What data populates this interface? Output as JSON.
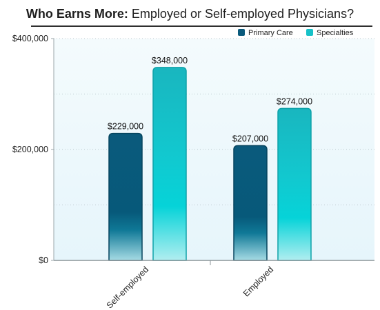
{
  "title_bold": "Who Earns More:",
  "title_rest": " Employed or Self-employed Physicians?",
  "colors": {
    "primary_care": "#0a5a7c",
    "specialties": "#17c1c8",
    "plot_bg": "#eef8fc",
    "grid": "#b9c7cc"
  },
  "chart_data": {
    "type": "bar",
    "title": "Who Earns More: Employed or Self-employed Physicians?",
    "xlabel": "",
    "ylabel": "",
    "categories": [
      "Self-employed",
      "Employed"
    ],
    "series": [
      {
        "name": "Primary Care",
        "values": [
          229000,
          207000
        ],
        "labels": [
          "$229,000",
          "$207,000"
        ]
      },
      {
        "name": "Specialties",
        "values": [
          348000,
          274000
        ],
        "labels": [
          "$348,000",
          "$274,000"
        ]
      }
    ],
    "ylim": [
      0,
      400000
    ],
    "yticks": [
      0,
      200000,
      400000
    ],
    "ytick_labels": [
      "$0",
      "$200,000",
      "$400,000"
    ],
    "grid": "dotted horizontal every 100,000",
    "legend": "top-right"
  }
}
